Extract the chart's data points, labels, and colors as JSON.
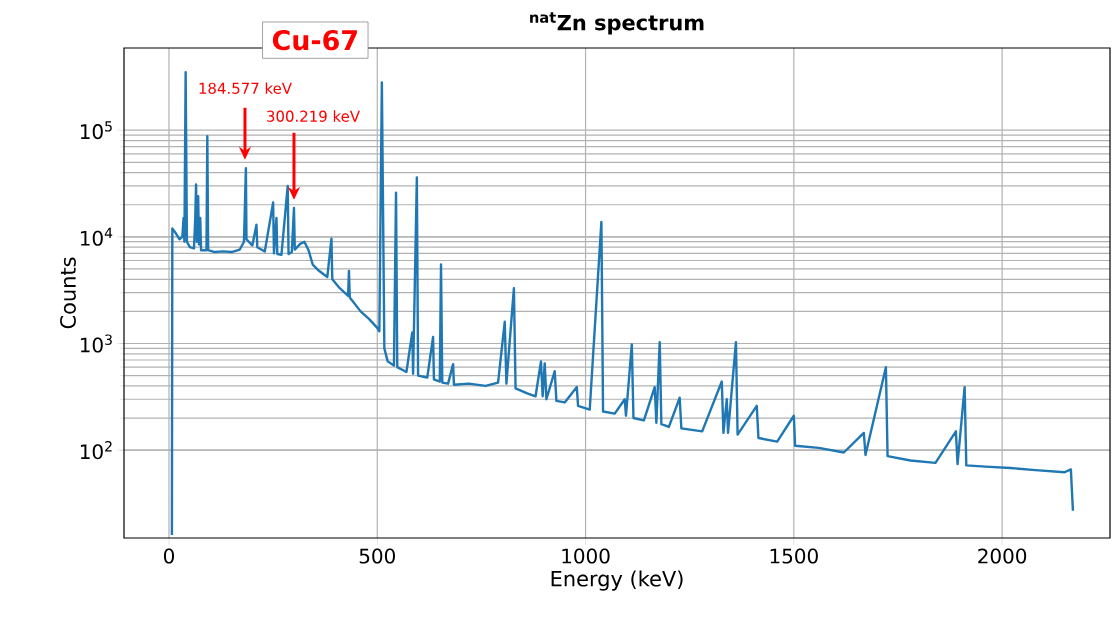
{
  "chart_data": {
    "type": "line",
    "title": "$^{nat}$Zn spectrum",
    "xlabel": "Energy (keV)",
    "ylabel": "Counts",
    "log": "y",
    "grid": true,
    "xlim": [
      -108,
      2259
    ],
    "ylim": [
      15,
      590000
    ],
    "xticks": [
      0,
      500,
      1000,
      1500,
      2000
    ],
    "yticks": [
      {
        "value": 100,
        "label": "10$^{2}$"
      },
      {
        "value": 1000,
        "label": "10$^{3}$"
      },
      {
        "value": 10000,
        "label": "10$^{4}$"
      },
      {
        "value": 100000,
        "label": "10$^{5}$"
      }
    ],
    "annotations": [
      "Cu-67",
      "184.577 keV",
      "300.219 keV"
    ],
    "series": [
      {
        "color": "#1f77b4",
        "x": [
          7,
          8,
          15,
          25,
          32,
          35,
          37,
          40,
          43,
          50,
          60,
          63,
          65,
          67,
          70,
          72,
          75,
          77,
          90,
          92,
          94,
          110,
          130,
          150,
          170,
          180,
          184.6,
          186,
          200,
          210,
          212,
          230,
          250,
          252,
          258,
          260,
          270,
          285,
          287,
          295,
          300,
          302,
          315,
          325,
          335,
          345,
          360,
          380,
          390,
          392,
          410,
          430,
          432,
          434,
          460,
          480,
          500,
          505,
          511,
          517,
          525,
          540,
          545,
          548,
          570,
          584,
          586,
          595,
          598,
          620,
          634,
          636,
          650,
          653,
          656,
          670,
          682,
          684,
          720,
          760,
          790,
          806,
          810,
          828,
          832,
          860,
          880,
          893,
          897,
          902,
          906,
          926,
          930,
          950,
          979,
          982,
          1010,
          1038,
          1042,
          1070,
          1094,
          1097,
          1111,
          1115,
          1140,
          1166,
          1170,
          1178,
          1182,
          1200,
          1226,
          1230,
          1280,
          1327,
          1331,
          1339,
          1342,
          1361,
          1365,
          1411,
          1415,
          1460,
          1500,
          1503,
          1560,
          1620,
          1668,
          1672,
          1721,
          1725,
          1780,
          1840,
          1889,
          1893,
          1910,
          1914,
          1960,
          2020,
          2080,
          2150,
          2165,
          2170
        ],
        "values": [
          16,
          12000,
          11000,
          9500,
          10000,
          15000,
          9000,
          350000,
          9000,
          8000,
          7800,
          15000,
          31000,
          9000,
          24000,
          8500,
          15000,
          7500,
          7500,
          88000,
          7500,
          7200,
          7300,
          7200,
          7600,
          9000,
          44000,
          9500,
          8300,
          13000,
          8000,
          7300,
          21000,
          7000,
          15000,
          6900,
          6800,
          30000,
          6900,
          7200,
          18700,
          7600,
          8600,
          9000,
          7500,
          5500,
          4800,
          4200,
          9600,
          4000,
          3300,
          2800,
          4800,
          2700,
          2000,
          1700,
          1400,
          1300,
          280000,
          900,
          680,
          620,
          26000,
          600,
          540,
          1270,
          520,
          36000,
          500,
          480,
          1150,
          460,
          440,
          5500,
          430,
          420,
          640,
          410,
          420,
          400,
          430,
          1600,
          420,
          3300,
          380,
          340,
          320,
          680,
          320,
          650,
          300,
          550,
          290,
          280,
          390,
          260,
          240,
          13800,
          230,
          220,
          300,
          210,
          980,
          200,
          190,
          390,
          180,
          1030,
          175,
          165,
          310,
          160,
          150,
          440,
          145,
          300,
          145,
          1030,
          140,
          260,
          130,
          120,
          210,
          110,
          105,
          95,
          145,
          90,
          600,
          88,
          80,
          76,
          150,
          74,
          390,
          72,
          70,
          68,
          65,
          62,
          66,
          27
        ]
      }
    ]
  }
}
